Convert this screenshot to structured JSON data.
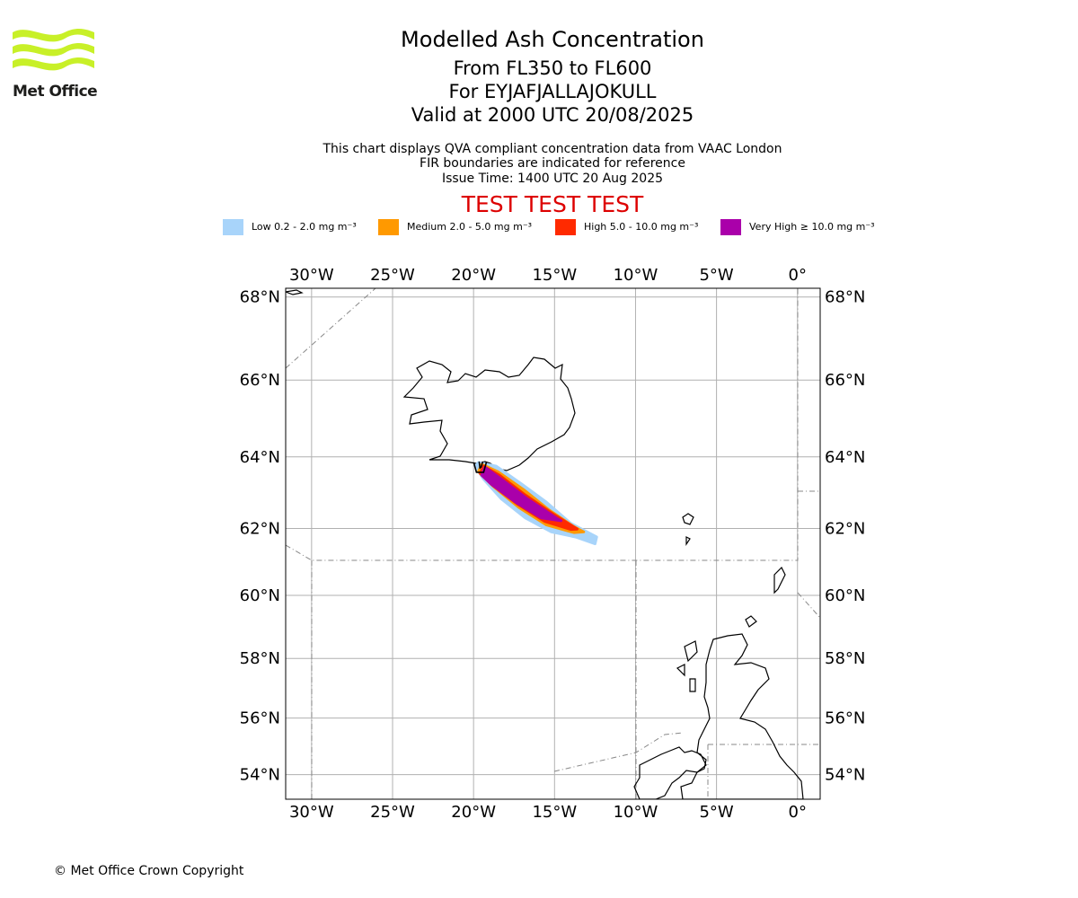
{
  "header": {
    "logo_text": "Met Office",
    "title": "Modelled Ash Concentration",
    "levels": "From FL350 to FL600",
    "volcano": "For EYJAFJALLAJOKULL",
    "valid": "Valid at 2000 UTC 20/08/2025",
    "note1": "This chart displays QVA compliant concentration data from VAAC London",
    "note2": "FIR boundaries are indicated for reference",
    "issue": "Issue Time: 1400 UTC 20 Aug 2025",
    "test_banner": "TEST TEST TEST"
  },
  "legend": [
    {
      "label": "Low 0.2 - 2.0 mg m⁻³",
      "color": "#a8d4fa"
    },
    {
      "label": "Medium 2.0 - 5.0 mg m⁻³",
      "color": "#ff9900"
    },
    {
      "label": "High 5.0 - 10.0 mg m⁻³",
      "color": "#ff2a00"
    },
    {
      "label": "Very High ≥ 10.0 mg m⁻³",
      "color": "#aa00aa"
    }
  ],
  "map": {
    "lon_range": [
      -31.6,
      1.4
    ],
    "lat_range": [
      53.1,
      68.2
    ],
    "lon_ticks": [
      {
        "value": -30,
        "label": "30°W"
      },
      {
        "value": -25,
        "label": "25°W"
      },
      {
        "value": -20,
        "label": "20°W"
      },
      {
        "value": -15,
        "label": "15°W"
      },
      {
        "value": -10,
        "label": "10°W"
      },
      {
        "value": -5,
        "label": "5°W"
      },
      {
        "value": 0,
        "label": "0°"
      }
    ],
    "lat_ticks": [
      {
        "value": 54,
        "label": "54°N"
      },
      {
        "value": 56,
        "label": "56°N"
      },
      {
        "value": 58,
        "label": "58°N"
      },
      {
        "value": 60,
        "label": "60°N"
      },
      {
        "value": 62,
        "label": "62°N"
      },
      {
        "value": 64,
        "label": "64°N"
      },
      {
        "value": 66,
        "label": "66°N"
      },
      {
        "value": 68,
        "label": "68°N"
      }
    ],
    "gridlines": true,
    "ash_plume": {
      "low": [
        [
          -19.7,
          63.85
        ],
        [
          -18.6,
          63.75
        ],
        [
          -17.0,
          63.25
        ],
        [
          -15.5,
          62.75
        ],
        [
          -14.0,
          62.15
        ],
        [
          -12.4,
          61.75
        ],
        [
          -12.5,
          61.55
        ],
        [
          -13.7,
          61.75
        ],
        [
          -15.2,
          61.9
        ],
        [
          -16.8,
          62.3
        ],
        [
          -18.3,
          62.85
        ],
        [
          -19.4,
          63.4
        ],
        [
          -19.9,
          63.75
        ]
      ],
      "medium": [
        [
          -19.5,
          63.8
        ],
        [
          -18.5,
          63.6
        ],
        [
          -16.9,
          63.1
        ],
        [
          -15.4,
          62.55
        ],
        [
          -13.8,
          62.05
        ],
        [
          -13.2,
          61.9
        ],
        [
          -13.8,
          61.88
        ],
        [
          -15.5,
          62.1
        ],
        [
          -17.2,
          62.6
        ],
        [
          -18.8,
          63.2
        ],
        [
          -19.7,
          63.6
        ]
      ],
      "high": [
        [
          -19.4,
          63.75
        ],
        [
          -18.4,
          63.5
        ],
        [
          -16.8,
          62.95
        ],
        [
          -15.2,
          62.45
        ],
        [
          -13.6,
          61.98
        ],
        [
          -14.0,
          61.97
        ],
        [
          -15.6,
          62.2
        ],
        [
          -17.3,
          62.7
        ],
        [
          -18.9,
          63.25
        ],
        [
          -19.6,
          63.55
        ]
      ],
      "very_high": [
        [
          -19.3,
          63.72
        ],
        [
          -18.3,
          63.4
        ],
        [
          -16.7,
          62.85
        ],
        [
          -14.9,
          62.3
        ],
        [
          -14.6,
          62.22
        ],
        [
          -15.8,
          62.3
        ],
        [
          -17.4,
          62.75
        ],
        [
          -18.9,
          63.25
        ],
        [
          -19.5,
          63.5
        ]
      ]
    },
    "vent": {
      "lon": -19.6,
      "lat": 63.63
    }
  },
  "footer": {
    "copyright": "© Met Office Crown Copyright"
  }
}
